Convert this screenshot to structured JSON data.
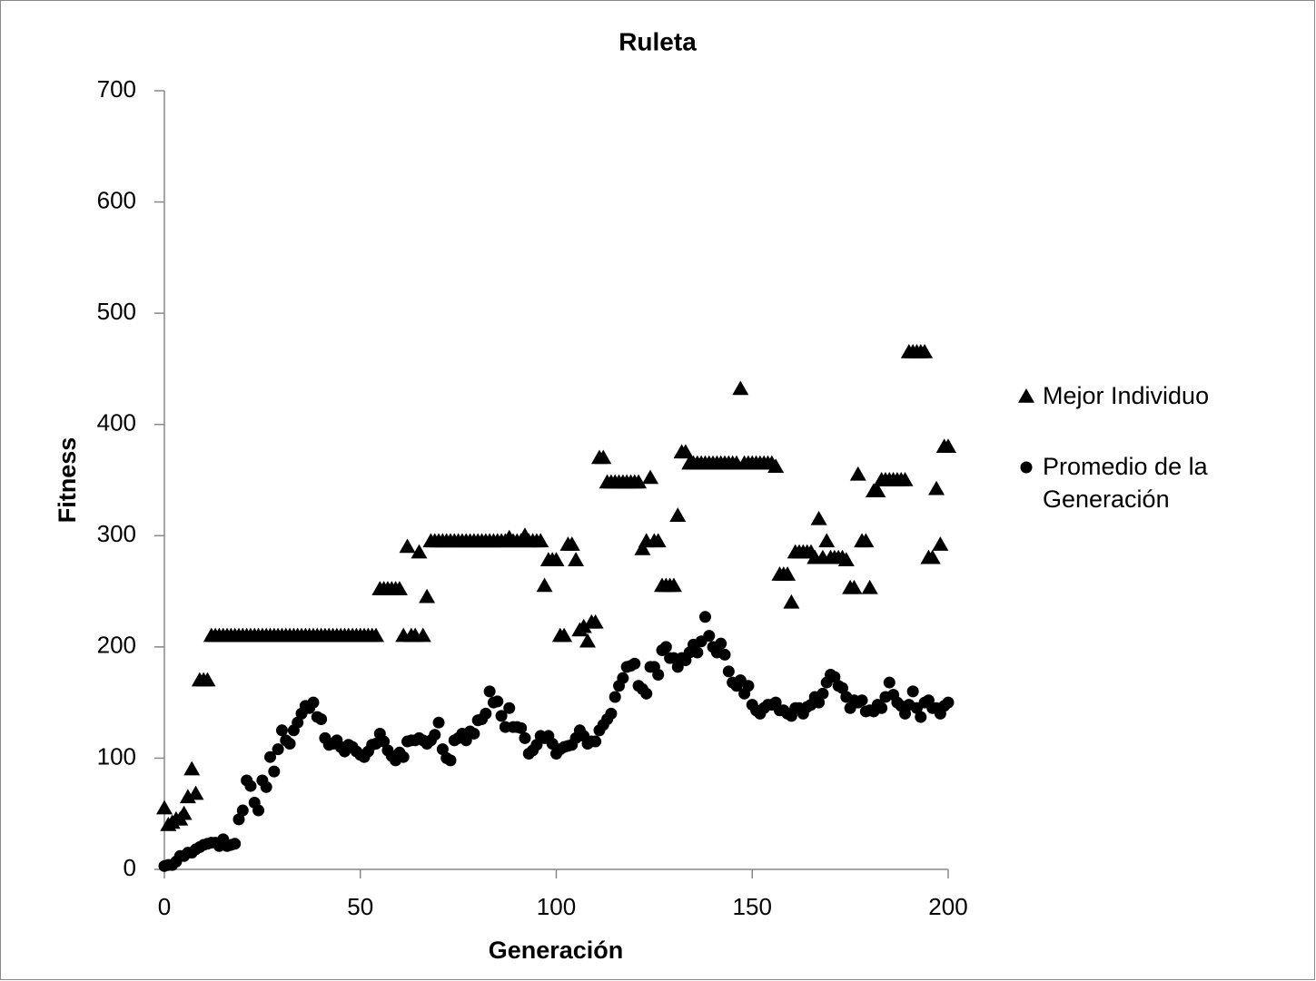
{
  "chart_data": {
    "type": "scatter",
    "title": "Ruleta",
    "x_label": "Generación",
    "y_label": "Fitness",
    "xlim": [
      0,
      200
    ],
    "ylim": [
      0,
      700
    ],
    "xticks": [
      0,
      50,
      100,
      150,
      200
    ],
    "yticks": [
      0,
      100,
      200,
      300,
      400,
      500,
      600,
      700
    ],
    "grid": false,
    "legend": "right",
    "x": [
      0,
      1,
      2,
      3,
      4,
      5,
      6,
      7,
      8,
      9,
      10,
      11,
      12,
      13,
      14,
      15,
      16,
      17,
      18,
      19,
      20,
      21,
      22,
      23,
      24,
      25,
      26,
      27,
      28,
      29,
      30,
      31,
      32,
      33,
      34,
      35,
      36,
      37,
      38,
      39,
      40,
      41,
      42,
      43,
      44,
      45,
      46,
      47,
      48,
      49,
      50,
      51,
      52,
      53,
      54,
      55,
      56,
      57,
      58,
      59,
      60,
      61,
      62,
      63,
      64,
      65,
      66,
      67,
      68,
      69,
      70,
      71,
      72,
      73,
      74,
      75,
      76,
      77,
      78,
      79,
      80,
      81,
      82,
      83,
      84,
      85,
      86,
      87,
      88,
      89,
      90,
      91,
      92,
      93,
      94,
      95,
      96,
      97,
      98,
      99,
      100,
      101,
      102,
      103,
      104,
      105,
      106,
      107,
      108,
      109,
      110,
      111,
      112,
      113,
      114,
      115,
      116,
      117,
      118,
      119,
      120,
      121,
      122,
      123,
      124,
      125,
      126,
      127,
      128,
      129,
      130,
      131,
      132,
      133,
      134,
      135,
      136,
      137,
      138,
      139,
      140,
      141,
      142,
      143,
      144,
      145,
      146,
      147,
      148,
      149,
      150,
      151,
      152,
      153,
      154,
      155,
      156,
      157,
      158,
      159,
      160,
      161,
      162,
      163,
      164,
      165,
      166,
      167,
      168,
      169,
      170,
      171,
      172,
      173,
      174,
      175,
      176,
      177,
      178,
      179,
      180,
      181,
      182,
      183,
      184,
      185,
      186,
      187,
      188,
      189,
      190,
      191,
      192,
      193,
      194,
      195,
      196,
      197,
      198,
      199,
      200
    ],
    "series": [
      {
        "name": "Mejor Individuo",
        "color": "#000000",
        "marker": "triangle",
        "values": [
          55,
          40,
          42,
          45,
          45,
          50,
          65,
          90,
          68,
          170,
          170,
          170,
          210,
          210,
          210,
          210,
          210,
          210,
          210,
          210,
          210,
          210,
          210,
          210,
          210,
          210,
          210,
          210,
          210,
          210,
          210,
          210,
          210,
          210,
          210,
          210,
          210,
          210,
          210,
          210,
          210,
          210,
          210,
          210,
          210,
          210,
          210,
          210,
          210,
          210,
          210,
          210,
          210,
          210,
          210,
          252,
          252,
          252,
          252,
          252,
          252,
          210,
          290,
          210,
          210,
          285,
          210,
          245,
          295,
          295,
          295,
          295,
          295,
          295,
          295,
          295,
          295,
          295,
          295,
          295,
          295,
          295,
          295,
          295,
          295,
          295,
          295,
          295,
          298,
          295,
          295,
          295,
          300,
          295,
          295,
          295,
          295,
          255,
          278,
          278,
          278,
          210,
          210,
          292,
          292,
          278,
          215,
          218,
          205,
          222,
          222,
          370,
          370,
          348,
          348,
          348,
          348,
          348,
          348,
          348,
          348,
          348,
          288,
          295,
          352,
          295,
          295,
          255,
          255,
          255,
          255,
          318,
          375,
          375,
          365,
          365,
          365,
          365,
          365,
          365,
          365,
          365,
          365,
          365,
          365,
          365,
          365,
          432,
          365,
          365,
          365,
          365,
          365,
          365,
          365,
          365,
          362,
          265,
          265,
          265,
          240,
          285,
          285,
          285,
          285,
          285,
          280,
          315,
          280,
          295,
          280,
          280,
          280,
          280,
          278,
          253,
          253,
          355,
          295,
          295,
          253,
          340,
          340,
          350,
          350,
          350,
          350,
          350,
          350,
          350,
          465,
          465,
          465,
          465,
          465,
          280,
          280,
          342,
          292,
          380,
          380
        ]
      },
      {
        "name": "Promedio de la Generación",
        "color": "#000000",
        "marker": "circle",
        "values": [
          3,
          4,
          4,
          7,
          12,
          12,
          15,
          15,
          18,
          20,
          22,
          23,
          24,
          24,
          21,
          27,
          21,
          22,
          23,
          45,
          53,
          80,
          75,
          60,
          53,
          80,
          74,
          101,
          88,
          108,
          125,
          116,
          113,
          125,
          132,
          140,
          147,
          145,
          150,
          137,
          135,
          118,
          112,
          113,
          116,
          110,
          106,
          112,
          110,
          106,
          103,
          101,
          106,
          112,
          113,
          122,
          115,
          107,
          102,
          98,
          105,
          101,
          115,
          116,
          116,
          118,
          116,
          113,
          116,
          121,
          132,
          108,
          100,
          98,
          116,
          118,
          122,
          116,
          124,
          122,
          134,
          135,
          140,
          160,
          150,
          151,
          138,
          128,
          145,
          128,
          128,
          127,
          118,
          104,
          107,
          112,
          120,
          118,
          120,
          113,
          104,
          108,
          110,
          111,
          112,
          118,
          125,
          120,
          113,
          115,
          115,
          125,
          130,
          135,
          140,
          155,
          165,
          172,
          182,
          183,
          185,
          165,
          162,
          158,
          182,
          182,
          175,
          197,
          200,
          190,
          190,
          182,
          190,
          188,
          195,
          202,
          195,
          205,
          227,
          210,
          200,
          195,
          203,
          193,
          178,
          168,
          165,
          170,
          158,
          165,
          148,
          143,
          140,
          145,
          148,
          148,
          150,
          143,
          143,
          140,
          138,
          145,
          145,
          140,
          146,
          148,
          155,
          150,
          158,
          168,
          175,
          173,
          165,
          163,
          155,
          145,
          152,
          150,
          152,
          142,
          143,
          142,
          148,
          145,
          155,
          168,
          157,
          150,
          147,
          140,
          148,
          160,
          145,
          137,
          150,
          152,
          145,
          145,
          140,
          147,
          150
        ]
      }
    ]
  }
}
